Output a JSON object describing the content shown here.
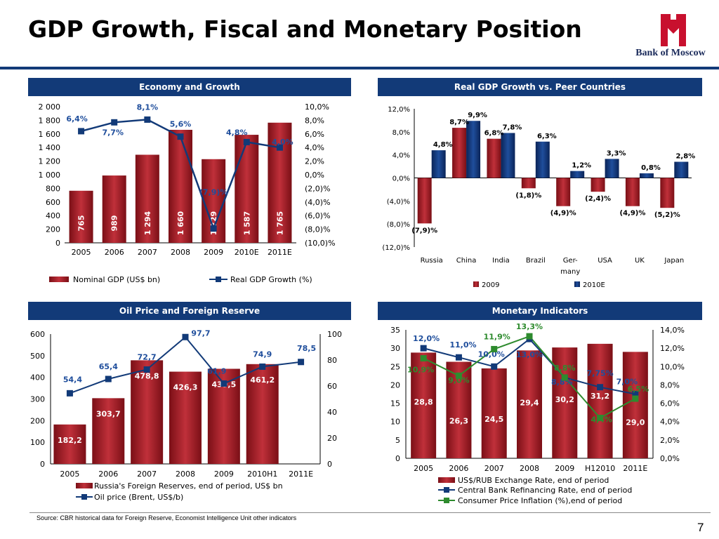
{
  "title": "GDP Growth, Fiscal and Monetary Position",
  "logo": {
    "text": "Bank of Moscow",
    "color": "#c8102e"
  },
  "colors": {
    "navy": "#123a78",
    "bar_red": "#a51c24",
    "bar_blue": "#003a80",
    "line_blue": "#123a78",
    "line_green": "#2e8b2e",
    "label_blue": "#1f4e9c",
    "label_green": "#2e8b2e"
  },
  "panels": {
    "p1": "Economy and Growth",
    "p2": "Real GDP Growth vs. Peer Countries",
    "p3": "Oil Price and Foreign Reserve",
    "p4": "Monetary Indicators"
  },
  "source": "Source: CBR historical data for Foreign Reserve, Economist Intelligence Unit other indicators",
  "page_number": "7",
  "chart_data": [
    {
      "id": "economy",
      "type": "bar+line",
      "categories": [
        "2005",
        "2006",
        "2007",
        "2008",
        "2009",
        "2010E",
        "2011E"
      ],
      "left_axis": {
        "min": 0,
        "max": 2000,
        "ticks": [
          0,
          200,
          400,
          600,
          800,
          1000,
          1200,
          1400,
          1600,
          1800,
          2000
        ],
        "tick_labels": [
          "0",
          "200",
          "400",
          "600",
          "800",
          "1 000",
          "1 200",
          "1 400",
          "1 600",
          "1 800",
          "2 000"
        ]
      },
      "right_axis": {
        "min": -10,
        "max": 10,
        "ticks": [
          -10,
          -8,
          -6,
          -4,
          -2,
          0,
          2,
          4,
          6,
          8,
          10
        ],
        "tick_labels": [
          "(10,0)%",
          "(8,0)%",
          "(6,0)%",
          "(4,0)%",
          "(2,0)%",
          "0,0%",
          "2,0%",
          "4,0%",
          "6,0%",
          "8,0%",
          "10,0%"
        ]
      },
      "bars": {
        "name": "Nominal GDP (US$ bn)",
        "values": [
          765,
          989,
          1294,
          1660,
          1229,
          1587,
          1765
        ],
        "labels": [
          "765",
          "989",
          "1 294",
          "1 660",
          "1 229",
          "1 587",
          "1 765"
        ]
      },
      "line": {
        "name": "Real GDP Growth (%)",
        "values": [
          6.4,
          7.7,
          8.1,
          5.6,
          -7.9,
          4.8,
          4.0
        ],
        "labels": [
          "6,4%",
          "7,7%",
          "8,1%",
          "5,6%",
          "(7,9)%",
          "4,8%",
          "4,0%"
        ]
      }
    },
    {
      "id": "peers",
      "type": "bar",
      "categories": [
        "Russia",
        "China",
        "India",
        "Brazil",
        "Ger-many",
        "USA",
        "UK",
        "Japan"
      ],
      "axis": {
        "min": -12,
        "max": 12,
        "ticks": [
          -12,
          -8,
          -4,
          0,
          4,
          8,
          12
        ],
        "tick_labels": [
          "(12,0)%",
          "(8,0)%",
          "(4,0)%",
          "0,0%",
          "4,0%",
          "8,0%",
          "12,0%"
        ]
      },
      "series": [
        {
          "name": "2009",
          "values": [
            -7.9,
            8.7,
            6.8,
            -1.8,
            -4.9,
            -2.4,
            -4.9,
            -5.2
          ],
          "labels": [
            "(7,9)%",
            "8,7%",
            "6,8%",
            "(1,8)%",
            "(4,9)%",
            "(2,4)%",
            "(4,9)%",
            "(5,2)%"
          ]
        },
        {
          "name": "2010E",
          "values": [
            4.8,
            9.9,
            7.8,
            6.3,
            1.2,
            3.3,
            0.8,
            2.8
          ],
          "labels": [
            "4,8%",
            "9,9%",
            "7,8%",
            "6,3%",
            "1,2%",
            "3,3%",
            "0,8%",
            "2,8%"
          ]
        }
      ]
    },
    {
      "id": "oil",
      "type": "bar+line",
      "categories": [
        "2005",
        "2006",
        "2007",
        "2008",
        "2009",
        "2010H1",
        "2011E"
      ],
      "left_axis": {
        "min": 0,
        "max": 600,
        "ticks": [
          0,
          100,
          200,
          300,
          400,
          500,
          600
        ],
        "tick_labels": [
          "0",
          "100",
          "200",
          "300",
          "400",
          "500",
          "600"
        ]
      },
      "right_axis": {
        "min": 0,
        "max": 100,
        "ticks": [
          0,
          20,
          40,
          60,
          80,
          100
        ],
        "tick_labels": [
          "0",
          "20",
          "40",
          "60",
          "80",
          "100"
        ]
      },
      "bars": {
        "name": "Russia's Foreign Reserves, end of period, US$ bn",
        "values": [
          182.2,
          303.7,
          478.8,
          426.3,
          439.5,
          461.2
        ],
        "labels": [
          "182,2",
          "303,7",
          "478,8",
          "426,3",
          "439,5",
          "461,2"
        ]
      },
      "line": {
        "name": "Oil price (Brent, US$/b)",
        "values": [
          54.4,
          65.4,
          72.7,
          97.7,
          61.9,
          74.9,
          78.5
        ],
        "labels": [
          "54,4",
          "65,4",
          "72,7",
          "97,7",
          "61,9",
          "74,9",
          "78,5"
        ]
      }
    },
    {
      "id": "monetary",
      "type": "bar+line",
      "categories": [
        "2005",
        "2006",
        "2007",
        "2008",
        "2009",
        "H12010",
        "2011E"
      ],
      "left_axis": {
        "min": 0,
        "max": 35,
        "ticks": [
          0,
          5,
          10,
          15,
          20,
          25,
          30,
          35
        ],
        "tick_labels": [
          "0",
          "5",
          "10",
          "15",
          "20",
          "25",
          "30",
          "35"
        ]
      },
      "right_axis": {
        "min": 0,
        "max": 14,
        "ticks": [
          0,
          2,
          4,
          6,
          8,
          10,
          12,
          14
        ],
        "tick_labels": [
          "0,0%",
          "2,0%",
          "4,0%",
          "6,0%",
          "8,0%",
          "10,0%",
          "12,0%",
          "14,0%"
        ]
      },
      "bars": {
        "name": "US$/RUB Exchange Rate, end of period",
        "values": [
          28.8,
          26.3,
          24.5,
          29.4,
          30.2,
          31.2,
          29.0
        ],
        "labels": [
          "28,8",
          "26,3",
          "24,5",
          "29,4",
          "30,2",
          "31,2",
          "29,0"
        ]
      },
      "lines": [
        {
          "name": "Central Bank Refinancing Rate, end of period",
          "values": [
            12.0,
            11.0,
            10.0,
            13.0,
            8.8,
            7.75,
            7.0
          ],
          "labels": [
            "12,0%",
            "11,0%",
            "10,0%",
            "13,0%",
            "8,8%",
            "7,75%",
            "7,0%"
          ]
        },
        {
          "name": "Consumer Price Inflation (%),end of period",
          "values": [
            10.9,
            9.0,
            11.9,
            13.3,
            8.8,
            4.4,
            6.5
          ],
          "labels": [
            "10,9%",
            "9,0%",
            "11,9%",
            "13,3%",
            "8,8%",
            "4,4%",
            "6,5%"
          ]
        }
      ]
    }
  ]
}
